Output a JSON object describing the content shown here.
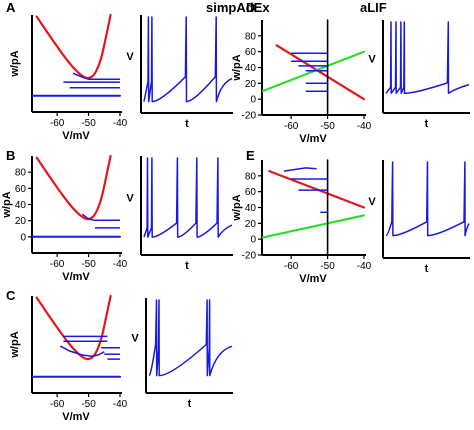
{
  "header": {
    "left_title": "simpAdEx",
    "right_title": "aLIF"
  },
  "colors": {
    "nullcline_v": "#e8141c",
    "nullcline_w": "#22dd22",
    "trajectory": "#1a1adc",
    "axis": "#000000"
  },
  "chart_data": [
    {
      "id": "A-phase",
      "letter": "A",
      "type": "line",
      "xlabel": "V/mV",
      "ylabel": "w/pA",
      "xlim": [
        -68,
        -40
      ],
      "ylim": [
        -20,
        100
      ],
      "xticks": [
        "-60",
        "-50",
        "-40"
      ],
      "yticks": [],
      "series": [
        {
          "role": "v-nullcline",
          "x": [
            -66.5,
            -62,
            -58,
            -55,
            -52,
            -50,
            -48,
            -46,
            -44.5,
            -43
          ],
          "y": [
            98,
            72,
            50,
            35,
            24,
            21,
            26,
            45,
            72,
            100
          ]
        },
        {
          "role": "w-nullcline",
          "x": [
            -68,
            -40
          ],
          "y": [
            0,
            0
          ]
        },
        {
          "role": "trajectory",
          "segments": [
            [
              [
                -55,
                28
              ],
              [
                -52,
                23
              ],
              [
                -50,
                20.5
              ],
              [
                -48,
                20.5
              ],
              [
                -40,
                20.5
              ]
            ],
            [
              [
                -58,
                17
              ],
              [
                -40,
                17
              ]
            ],
            [
              [
                -56,
                10
              ],
              [
                -40,
                10
              ]
            ]
          ]
        }
      ]
    },
    {
      "id": "A-trace",
      "type": "line",
      "ylabel": "V",
      "xlabel": "t",
      "spike_times": [
        0.05,
        0.09,
        0.48,
        0.82
      ],
      "spike_peak": 0,
      "reset_level": -0.7,
      "trough_level": -0.92
    },
    {
      "id": "B-phase",
      "letter": "B",
      "type": "line",
      "xlabel": "V/mV",
      "ylabel": "w/pA",
      "xlim": [
        -68,
        -40
      ],
      "ylim": [
        -20,
        100
      ],
      "xticks": [
        "-60",
        "-50",
        "-40"
      ],
      "yticks": [
        "0",
        "20",
        "40",
        "60",
        "80"
      ],
      "series": [
        {
          "role": "v-nullcline",
          "x": [
            -66.5,
            -62,
            -58,
            -55,
            -52,
            -50,
            -48,
            -46,
            -44.5,
            -43
          ],
          "y": [
            98,
            72,
            50,
            35,
            24,
            21,
            26,
            45,
            72,
            100
          ]
        },
        {
          "role": "w-nullcline",
          "x": [
            -68,
            -40
          ],
          "y": [
            0,
            0
          ]
        },
        {
          "role": "trajectory",
          "segments": [
            [
              [
                -52,
                28
              ],
              [
                -50,
                22
              ],
              [
                -48,
                20.5
              ],
              [
                -40,
                20.5
              ]
            ],
            [
              [
                -48,
                11
              ],
              [
                -40,
                11
              ]
            ]
          ]
        }
      ]
    },
    {
      "id": "B-trace",
      "type": "line",
      "ylabel": "V",
      "xlabel": "t",
      "spike_times": [
        0.04,
        0.09,
        0.38,
        0.6,
        0.84
      ],
      "spike_peak": 0,
      "reset_level": -0.75,
      "trough_level": -0.85
    },
    {
      "id": "C-phase",
      "letter": "C",
      "type": "line",
      "xlabel": "V/mV",
      "ylabel": "w/pA",
      "xlim": [
        -68,
        -40
      ],
      "ylim": [
        -20,
        100
      ],
      "xticks": [
        "-60",
        "-50",
        "-40"
      ],
      "yticks": [],
      "series": [
        {
          "role": "v-nullcline",
          "x": [
            -66.5,
            -62,
            -58,
            -55,
            -52,
            -50,
            -48,
            -46,
            -44.5,
            -43
          ],
          "y": [
            98,
            72,
            50,
            35,
            24,
            21,
            26,
            45,
            72,
            100
          ]
        },
        {
          "role": "w-nullcline",
          "x": [
            -68,
            -40
          ],
          "y": [
            0,
            0
          ]
        },
        {
          "role": "trajectory",
          "segments": [
            [
              [
                -58,
                50
              ],
              [
                -44,
                50
              ]
            ],
            [
              [
                -58,
                44
              ],
              [
                -44,
                44
              ]
            ],
            [
              [
                -59,
                38
              ],
              [
                -56,
                32
              ],
              [
                -52,
                27
              ],
              [
                -49,
                25.5
              ],
              [
                -47,
                27
              ],
              [
                -45,
                31
              ]
            ],
            [
              [
                -46,
                36
              ],
              [
                -40,
                36
              ]
            ],
            [
              [
                -45,
                28
              ],
              [
                -40,
                28
              ]
            ],
            [
              [
                -44,
                22
              ],
              [
                -40,
                22
              ]
            ]
          ]
        }
      ]
    },
    {
      "id": "C-trace",
      "type": "line",
      "ylabel": "V",
      "xlabel": "t",
      "spike_times": [
        0.09,
        0.12,
        0.7,
        0.73
      ],
      "spike_peak": 0,
      "reset_level": -0.55,
      "trough_level": -0.85
    },
    {
      "id": "D-phase",
      "letter": "D",
      "type": "line",
      "xlabel": "V/mV",
      "ylabel": "w/pA",
      "xlim": [
        -68,
        -40
      ],
      "ylim": [
        -20,
        100
      ],
      "xticks": [
        "-60",
        "-50",
        "-40"
      ],
      "yticks": [
        "-20",
        "0",
        "20",
        "40",
        "60",
        "80"
      ],
      "series": [
        {
          "role": "v-nullcline",
          "x": [
            -64,
            -40
          ],
          "y": [
            68,
            0
          ]
        },
        {
          "role": "w-nullcline",
          "x": [
            -68,
            -40
          ],
          "y": [
            10,
            60
          ]
        },
        {
          "role": "threshold",
          "x": [
            -50,
            -50
          ],
          "y": [
            -20,
            100
          ]
        },
        {
          "role": "trajectory",
          "segments": [
            [
              [
                -60,
                58
              ],
              [
                -50,
                58
              ]
            ],
            [
              [
                -60,
                48
              ],
              [
                -50,
                48
              ]
            ],
            [
              [
                -58,
                42
              ],
              [
                -50,
                42
              ]
            ],
            [
              [
                -56,
                36
              ],
              [
                -50,
                36
              ]
            ],
            [
              [
                -56,
                20
              ],
              [
                -50,
                20
              ]
            ],
            [
              [
                -56,
                10
              ],
              [
                -50,
                10
              ]
            ]
          ]
        }
      ]
    },
    {
      "id": "D-trace",
      "type": "line",
      "ylabel": "V",
      "xlabel": "t",
      "spike_times": [
        0.06,
        0.12,
        0.18,
        0.22,
        0.75
      ],
      "spike_peak": 0,
      "reset_level": -0.75,
      "trough_level": -0.82
    },
    {
      "id": "E-phase",
      "letter": "E",
      "type": "line",
      "xlabel": "V/mV",
      "ylabel": "w/pA",
      "xlim": [
        -68,
        -40
      ],
      "ylim": [
        -20,
        100
      ],
      "xticks": [
        "-60",
        "-50",
        "-40"
      ],
      "yticks": [
        "-20",
        "0",
        "20",
        "40",
        "60",
        "80"
      ],
      "series": [
        {
          "role": "v-nullcline",
          "x": [
            -66,
            -40
          ],
          "y": [
            86,
            40
          ]
        },
        {
          "role": "w-nullcline",
          "x": [
            -68,
            -40
          ],
          "y": [
            2,
            30
          ]
        },
        {
          "role": "threshold",
          "x": [
            -50,
            -50
          ],
          "y": [
            -20,
            100
          ]
        },
        {
          "role": "trajectory",
          "segments": [
            [
              [
                -62,
                86
              ],
              [
                -56,
                90
              ],
              [
                -53,
                89
              ]
            ],
            [
              [
                -60,
                76
              ],
              [
                -50,
                76
              ]
            ],
            [
              [
                -58,
                62
              ],
              [
                -50,
                62
              ]
            ],
            [
              [
                -52,
                34
              ],
              [
                -50,
                34
              ]
            ]
          ]
        }
      ]
    },
    {
      "id": "E-trace",
      "type": "line",
      "ylabel": "V",
      "xlabel": "t",
      "spike_times": [
        0.08,
        0.5,
        0.95
      ],
      "spike_peak": 0,
      "reset_level": -0.7,
      "trough_level": -0.8
    }
  ]
}
